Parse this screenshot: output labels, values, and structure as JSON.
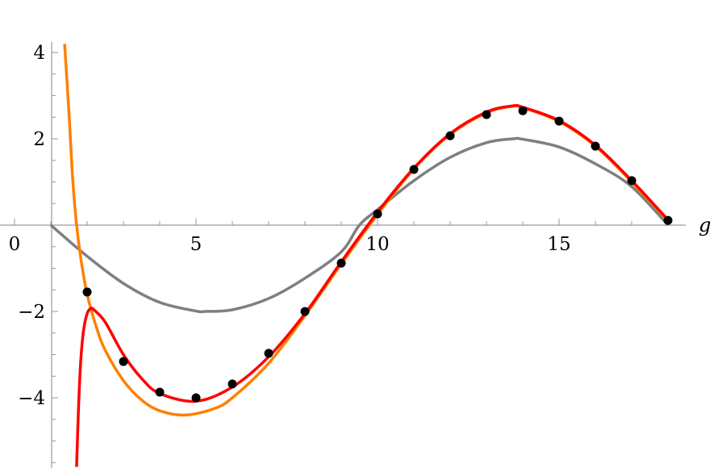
{
  "chart_data": {
    "type": "line",
    "xlabel": "g",
    "ylabel": "",
    "xlim": [
      1,
      18.1
    ],
    "ylim": [
      -5.53,
      4.19
    ],
    "grid": false,
    "x_ticks": [
      0,
      5,
      10,
      15
    ],
    "x_tick_labels": [
      "0",
      "5",
      "10",
      "15"
    ],
    "y_ticks": [
      4,
      2,
      -2,
      -4
    ],
    "y_tick_labels": [
      "4",
      "2",
      "−2",
      "−4"
    ],
    "colors": {
      "points": "#000000",
      "gray": "#7f7f7f",
      "orange": "#ff8000",
      "red": "#ff0000"
    },
    "points": {
      "x": [
        2,
        3,
        4,
        5,
        6,
        7,
        8,
        9,
        10,
        11,
        12,
        13,
        14,
        15,
        16,
        17,
        18
      ],
      "y": [
        -1.55,
        -3.16,
        -3.87,
        -4.0,
        -3.68,
        -2.97,
        -2.0,
        -0.88,
        0.26,
        1.29,
        2.07,
        2.56,
        2.65,
        2.41,
        1.83,
        1.03,
        0.11
      ]
    },
    "series": [
      {
        "color": "#7f7f7f",
        "x": [
          1,
          2,
          3,
          4,
          5,
          5.25,
          6,
          7,
          8,
          9,
          9.5,
          10,
          11,
          12,
          13,
          13.75,
          14,
          15,
          16,
          17,
          18
        ],
        "y": [
          0,
          -0.72,
          -1.35,
          -1.79,
          -1.99,
          -2.0,
          -1.96,
          -1.7,
          -1.23,
          -0.62,
          0,
          0.36,
          1.03,
          1.57,
          1.91,
          2.0,
          1.99,
          1.81,
          1.42,
          0.89,
          0
        ]
      },
      {
        "color": "#ff8000",
        "x": [
          1.38,
          1.5,
          1.6,
          1.71,
          1.85,
          2,
          2.25,
          2.5,
          3,
          3.5,
          4,
          4.7,
          5.5,
          6,
          7,
          8,
          9,
          10,
          11,
          12,
          13,
          13.7,
          14,
          15,
          16,
          17,
          18
        ],
        "y": [
          4.2,
          2.6,
          1.1,
          0,
          -0.9,
          -1.6,
          -2.35,
          -2.9,
          -3.6,
          -4.05,
          -4.3,
          -4.4,
          -4.25,
          -4.0,
          -3.2,
          -2.1,
          -0.9,
          0.25,
          1.3,
          2.1,
          2.6,
          2.75,
          2.72,
          2.4,
          1.83,
          1.0,
          0.1
        ]
      },
      {
        "color": "#ff0000",
        "x": [
          1.71,
          1.76,
          1.82,
          1.9,
          2.0,
          2.1,
          2.2,
          2.5,
          3,
          3.5,
          4,
          5,
          6,
          7,
          8,
          9,
          10,
          11,
          12,
          13,
          13.7,
          14,
          15,
          16,
          17,
          18
        ],
        "y": [
          -5.6,
          -4.3,
          -3.2,
          -2.45,
          -2.05,
          -1.93,
          -1.97,
          -2.25,
          -3.0,
          -3.55,
          -3.9,
          -4.08,
          -3.75,
          -3.05,
          -2.05,
          -0.85,
          0.3,
          1.32,
          2.12,
          2.62,
          2.76,
          2.73,
          2.42,
          1.85,
          1.03,
          0.12
        ]
      }
    ]
  }
}
